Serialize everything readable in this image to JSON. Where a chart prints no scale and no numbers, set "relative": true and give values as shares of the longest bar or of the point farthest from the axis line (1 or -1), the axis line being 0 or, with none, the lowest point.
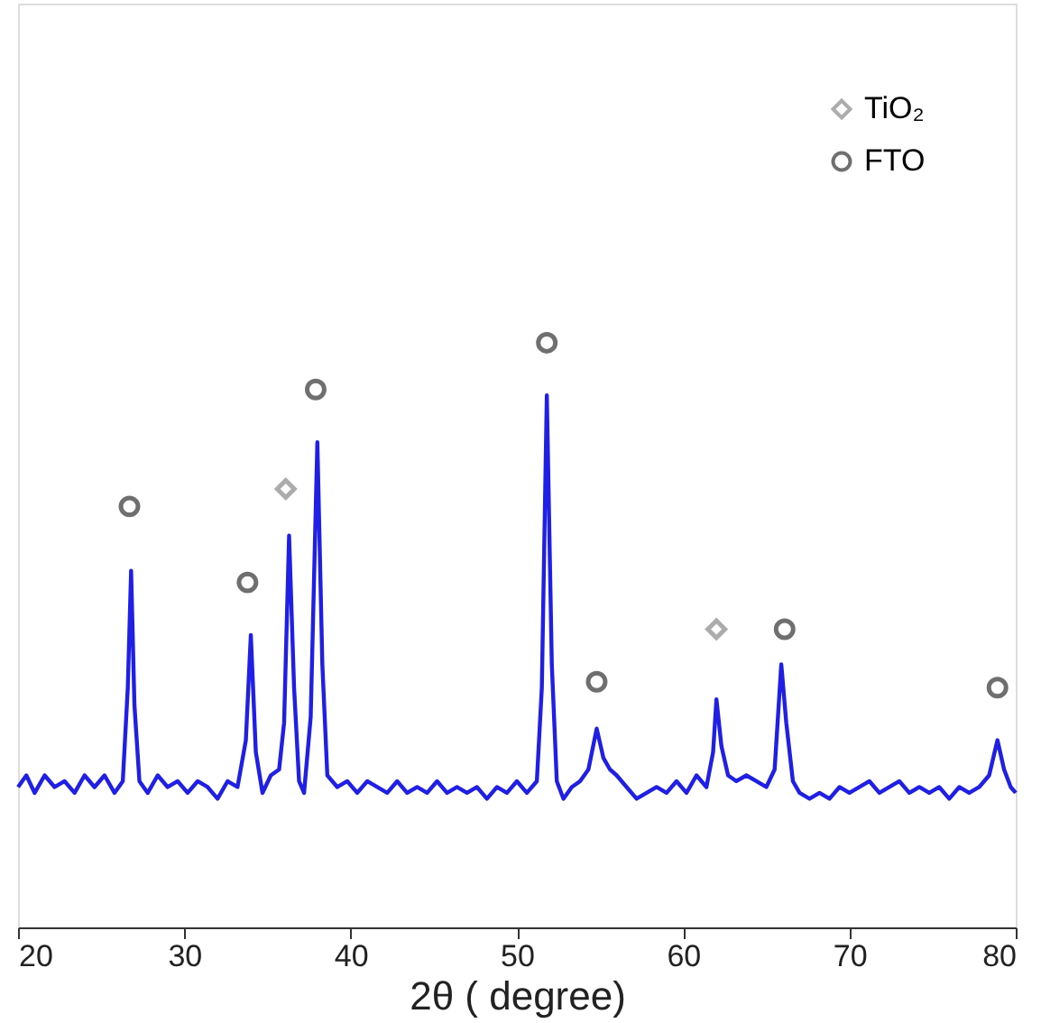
{
  "chart_data": {
    "type": "line",
    "relative": true,
    "xlabel": "2θ ( degree)",
    "xlim": [
      20,
      80
    ],
    "xticks": [
      20,
      30,
      40,
      50,
      60,
      70,
      80
    ],
    "grid": false,
    "legend": "top right",
    "tick_labels": "x",
    "series": [
      {
        "color": "#1f1fe6",
        "x": [
          20,
          20.5,
          21,
          21.6,
          22.2,
          22.8,
          23.4,
          24,
          24.6,
          25.2,
          25.8,
          26.3,
          26.6,
          26.8,
          27.0,
          27.3,
          27.8,
          28.4,
          29,
          29.6,
          30.2,
          30.8,
          31.4,
          32,
          32.6,
          33.2,
          33.7,
          34.0,
          34.3,
          34.7,
          35.2,
          35.7,
          36.0,
          36.3,
          36.6,
          36.9,
          37.2,
          37.6,
          38.0,
          38.3,
          38.6,
          39.2,
          39.8,
          40.4,
          41,
          41.6,
          42.2,
          42.8,
          43.4,
          44,
          44.6,
          45.2,
          45.8,
          46.4,
          47,
          47.6,
          48.2,
          48.8,
          49.4,
          50,
          50.6,
          51.2,
          51.5,
          51.8,
          52.1,
          52.4,
          52.8,
          53.3,
          53.8,
          54.3,
          54.8,
          55.2,
          55.6,
          56,
          56.6,
          57.2,
          57.8,
          58.4,
          59,
          59.6,
          60.2,
          60.8,
          61.4,
          61.8,
          62.0,
          62.3,
          62.7,
          63.2,
          63.8,
          64.4,
          65,
          65.5,
          65.9,
          66.2,
          66.6,
          67,
          67.6,
          68.2,
          68.8,
          69.4,
          70,
          70.6,
          71.2,
          71.8,
          72.4,
          73,
          73.6,
          74.2,
          74.8,
          75.4,
          76,
          76.6,
          77.2,
          77.8,
          78.4,
          78.9,
          79.3,
          79.7,
          80
        ],
        "values": [
          0.24,
          0.26,
          0.23,
          0.26,
          0.24,
          0.25,
          0.23,
          0.26,
          0.24,
          0.26,
          0.23,
          0.25,
          0.41,
          0.61,
          0.38,
          0.25,
          0.23,
          0.26,
          0.24,
          0.25,
          0.23,
          0.25,
          0.24,
          0.22,
          0.25,
          0.24,
          0.32,
          0.5,
          0.3,
          0.23,
          0.26,
          0.27,
          0.35,
          0.67,
          0.41,
          0.25,
          0.23,
          0.36,
          0.83,
          0.45,
          0.26,
          0.24,
          0.25,
          0.23,
          0.25,
          0.24,
          0.23,
          0.25,
          0.23,
          0.24,
          0.23,
          0.25,
          0.23,
          0.24,
          0.23,
          0.24,
          0.22,
          0.24,
          0.23,
          0.25,
          0.23,
          0.25,
          0.41,
          0.91,
          0.45,
          0.25,
          0.22,
          0.24,
          0.25,
          0.27,
          0.34,
          0.29,
          0.27,
          0.26,
          0.24,
          0.22,
          0.23,
          0.24,
          0.23,
          0.25,
          0.23,
          0.26,
          0.24,
          0.3,
          0.39,
          0.31,
          0.26,
          0.25,
          0.26,
          0.25,
          0.24,
          0.27,
          0.45,
          0.35,
          0.25,
          0.23,
          0.22,
          0.23,
          0.22,
          0.24,
          0.23,
          0.24,
          0.25,
          0.23,
          0.24,
          0.25,
          0.23,
          0.24,
          0.23,
          0.24,
          0.22,
          0.24,
          0.23,
          0.24,
          0.26,
          0.32,
          0.27,
          0.24,
          0.23
        ]
      },
      {
        "type": "scatter",
        "name": "TiO₂",
        "color": "#8a8a8a",
        "marker": "diamond",
        "x": [
          36.1,
          62.0
        ],
        "values": [
          0.75,
          0.51
        ]
      },
      {
        "type": "scatter",
        "name": "FTO",
        "color": "#333333",
        "marker": "circle",
        "x": [
          26.7,
          33.8,
          37.9,
          51.8,
          54.8,
          66.1,
          78.9
        ],
        "values": [
          0.72,
          0.59,
          0.92,
          1,
          0.42,
          0.51,
          0.41
        ]
      }
    ]
  }
}
